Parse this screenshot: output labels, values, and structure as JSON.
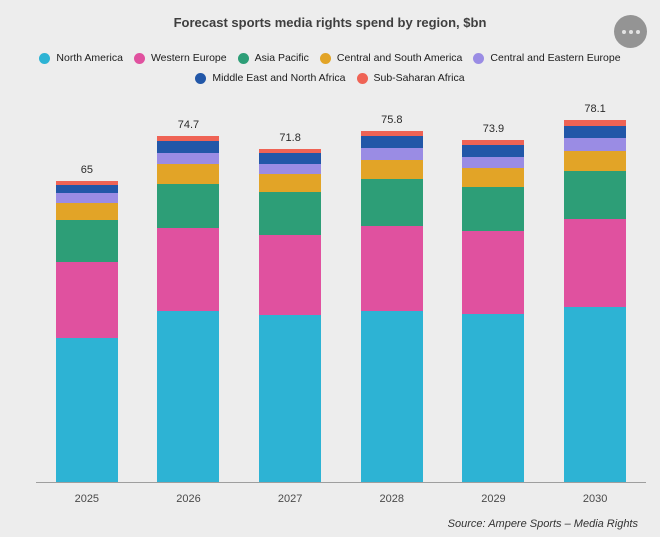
{
  "menu": {
    "icon": "ellipsis-icon"
  },
  "source": "Source:  Ampere Sports – Media Rights",
  "chart_data": {
    "type": "bar",
    "stacked": true,
    "title": "Forecast sports media rights spend by region, $bn",
    "categories": [
      "2025",
      "2026",
      "2027",
      "2028",
      "2029",
      "2030"
    ],
    "totals": [
      "65",
      "74.7",
      "71.8",
      "75.8",
      "73.9",
      "78.1"
    ],
    "series": [
      {
        "name": "North America",
        "color": "#2db3d4",
        "values": [
          31.0,
          36.8,
          36.0,
          37.0,
          36.3,
          37.8
        ]
      },
      {
        "name": "Western Europe",
        "color": "#e0519f",
        "values": [
          16.5,
          18.0,
          17.3,
          18.3,
          17.8,
          19.0
        ]
      },
      {
        "name": "Asia Pacific",
        "color": "#2d9e77",
        "values": [
          9.0,
          9.6,
          9.2,
          10.0,
          9.6,
          10.3
        ]
      },
      {
        "name": "Central and South America",
        "color": "#e2a427",
        "values": [
          3.8,
          4.2,
          3.9,
          4.2,
          4.0,
          4.4
        ]
      },
      {
        "name": "Central and Eastern Europe",
        "color": "#9a8ce4",
        "values": [
          2.1,
          2.4,
          2.2,
          2.6,
          2.4,
          2.7
        ]
      },
      {
        "name": "Middle East and North Africa",
        "color": "#2257a8",
        "values": [
          1.8,
          2.6,
          2.4,
          2.6,
          2.7,
          2.7
        ]
      },
      {
        "name": "Sub-Saharan Africa",
        "color": "#ef6355",
        "values": [
          0.8,
          1.1,
          0.8,
          1.1,
          1.1,
          1.2
        ]
      }
    ],
    "ylim": [
      0,
      80
    ],
    "grid": false,
    "legend_position": "top",
    "value_labels": "total above each bar"
  }
}
